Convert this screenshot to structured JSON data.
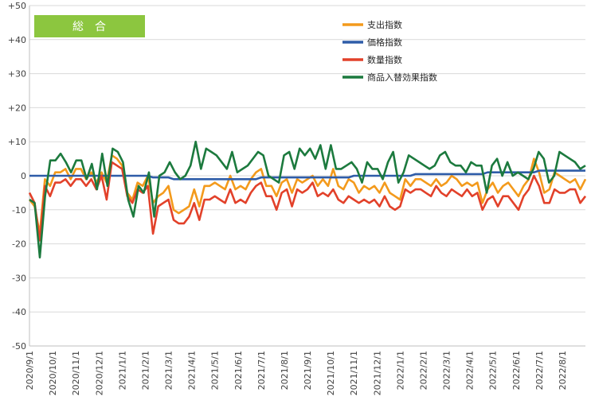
{
  "chart_data": {
    "type": "line",
    "badge": "総　合",
    "ylim": [
      -50,
      50
    ],
    "y_ticks": [
      {
        "value": 50,
        "label": "+50"
      },
      {
        "value": 40,
        "label": "+40"
      },
      {
        "value": 30,
        "label": "+30"
      },
      {
        "value": 20,
        "label": "+20"
      },
      {
        "value": 10,
        "label": "+10"
      },
      {
        "value": 0,
        "label": "0"
      },
      {
        "value": -10,
        "label": "-10"
      },
      {
        "value": -20,
        "label": "-20"
      },
      {
        "value": -30,
        "label": "-30"
      },
      {
        "value": -40,
        "label": "-40"
      },
      {
        "value": -50,
        "label": "-50"
      }
    ],
    "x_labels": [
      "2020/9/1",
      "2020/10/1",
      "2020/11/1",
      "2020/12/1",
      "2021/1/1",
      "2021/2/1",
      "2021/3/1",
      "2021/4/1",
      "2021/5/1",
      "2021/6/1",
      "2021/7/1",
      "2021/8/1",
      "2021/9/1",
      "2021/10/1",
      "2021/11/1",
      "2021/12/1",
      "2022/1/1",
      "2022/2/1",
      "2022/3/1",
      "2022/4/1",
      "2022/5/1",
      "2022/6/1",
      "2022/7/1",
      "2022/8/1"
    ],
    "grid": "horizontal",
    "legend_position": "top-right",
    "series": [
      {
        "name": "支出指数",
        "color": "#f39a1c",
        "values": [
          -7,
          -9,
          -17,
          -1,
          -3,
          1,
          1,
          2,
          -1,
          2,
          2,
          -1,
          1,
          -2,
          1,
          -2,
          6,
          5,
          3,
          -5,
          -7,
          -2,
          -3,
          0,
          -8,
          -6,
          -5,
          -3,
          -10,
          -11,
          -10,
          -9,
          -4,
          -9,
          -3,
          -3,
          -2,
          -3,
          -4,
          0,
          -4,
          -3,
          -4,
          -1,
          1,
          2,
          -3,
          -3,
          -6,
          -2,
          -1,
          -5,
          -1,
          -2,
          -1,
          0,
          -3,
          -1,
          -3,
          2,
          -3,
          -4,
          -1,
          -2,
          -5,
          -3,
          -4,
          -3,
          -5,
          -2,
          -5,
          -6,
          -7,
          -1,
          -3,
          -1,
          -1,
          -2,
          -3,
          -1,
          -3,
          -2,
          0,
          -1,
          -3,
          -2,
          -3,
          -2,
          -8,
          -4,
          -2,
          -5,
          -3,
          -2,
          -4,
          -6,
          -3,
          -1,
          5,
          1,
          -5,
          -4,
          1,
          0,
          -1,
          -2,
          -1,
          -4,
          -1
        ]
      },
      {
        "name": "価格指数",
        "color": "#2e5ca8",
        "values": [
          0,
          0,
          0,
          0,
          0,
          0,
          0,
          0,
          0,
          0,
          0,
          0,
          0,
          0,
          0,
          0,
          0,
          0,
          0,
          0,
          0,
          0,
          0,
          0,
          -0.5,
          -0.5,
          -0.5,
          -0.5,
          -1,
          -1,
          -1,
          -1,
          -1,
          -1,
          -1,
          -1,
          -1,
          -1,
          -1,
          -1,
          -1,
          -1,
          -1,
          -1,
          -1,
          -0.5,
          -0.5,
          -0.5,
          -0.5,
          -0.5,
          -0.5,
          -0.5,
          -0.5,
          -0.5,
          -0.5,
          -0.5,
          -0.5,
          -0.5,
          -0.5,
          -0.5,
          -0.5,
          -0.5,
          -0.5,
          0,
          0,
          0,
          0,
          0,
          0,
          0,
          0,
          0,
          0,
          0,
          0,
          0.5,
          0.5,
          0.5,
          0.5,
          0.5,
          0.5,
          0.5,
          0.5,
          0.5,
          0.5,
          0.5,
          0.5,
          0.5,
          0.5,
          1,
          1,
          1,
          1,
          1,
          1,
          1,
          1,
          1,
          1,
          1.5,
          1.5,
          1.5,
          1.5,
          1.5,
          1.5,
          1.5,
          1.5,
          1.5,
          1.5
        ]
      },
      {
        "name": "数量指数",
        "color": "#e2412a",
        "values": [
          -5,
          -8,
          -19,
          -3,
          -6,
          -2,
          -2,
          -1,
          -3,
          -1,
          -1,
          -3,
          -1,
          -4,
          0,
          -7,
          4,
          3,
          2,
          -6,
          -8,
          -4,
          -5,
          -3,
          -17,
          -9,
          -8,
          -7,
          -13,
          -14,
          -14,
          -12,
          -8,
          -13,
          -7,
          -7,
          -6,
          -7,
          -8,
          -4,
          -8,
          -7,
          -8,
          -5,
          -3,
          -2,
          -6,
          -6,
          -10,
          -5,
          -4,
          -9,
          -4,
          -5,
          -4,
          -2,
          -6,
          -5,
          -6,
          -4,
          -7,
          -8,
          -6,
          -7,
          -8,
          -7,
          -8,
          -7,
          -9,
          -6,
          -9,
          -10,
          -9,
          -4,
          -5,
          -4,
          -4,
          -5,
          -6,
          -3,
          -5,
          -6,
          -4,
          -5,
          -6,
          -4,
          -6,
          -5,
          -10,
          -7,
          -6,
          -9,
          -6,
          -6,
          -8,
          -10,
          -6,
          -4,
          0,
          -3,
          -8,
          -8,
          -4,
          -5,
          -5,
          -4,
          -4,
          -8,
          -6
        ]
      },
      {
        "name": "商品入替効果指数",
        "color": "#1c7a3e",
        "values": [
          -7,
          -8,
          -24,
          -6,
          4.5,
          4.5,
          6.5,
          4,
          1,
          4.5,
          4.5,
          -1,
          3.5,
          -4,
          6.5,
          -3,
          8,
          7,
          4,
          -7,
          -12,
          -3,
          -5,
          1,
          -12,
          0,
          1,
          4,
          1,
          -1,
          0,
          3,
          10,
          2,
          8,
          7,
          6,
          4,
          2,
          7,
          1,
          2,
          3,
          5,
          7,
          6,
          0,
          -1,
          -2,
          6,
          7,
          2,
          8,
          6,
          8,
          5,
          9,
          2,
          9,
          2,
          2,
          3,
          4,
          2,
          -2,
          4,
          2,
          2,
          -1,
          4,
          7,
          -2,
          1,
          6,
          5,
          4,
          3,
          2,
          3,
          6,
          7,
          4,
          3,
          3,
          1,
          4,
          3,
          3,
          -5,
          3,
          5,
          0,
          4,
          0,
          1,
          0,
          -1,
          2,
          7,
          5,
          -2,
          0,
          7,
          6,
          5,
          4,
          2,
          3
        ]
      }
    ]
  }
}
